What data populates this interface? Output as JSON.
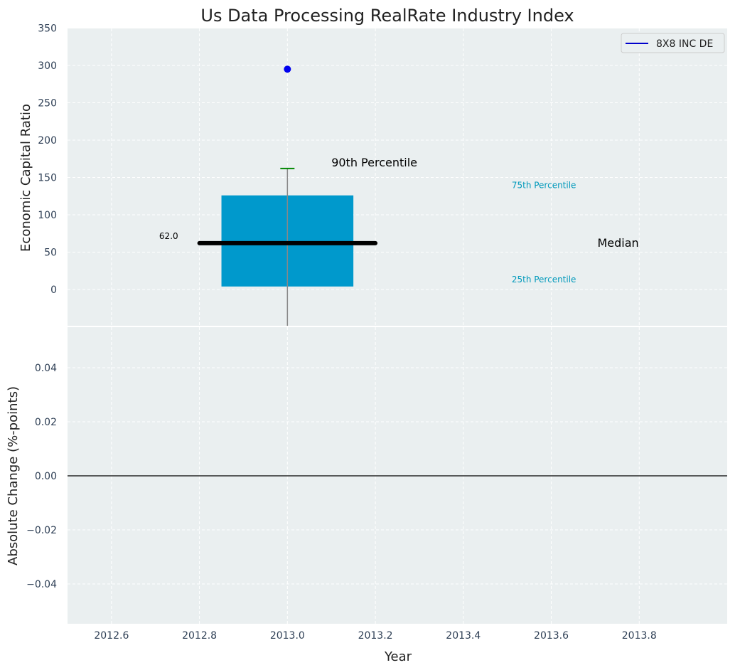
{
  "chart_data": [
    {
      "type": "box",
      "title": "Us Data Processing RealRate Industry Index",
      "xlabel": "",
      "ylabel": "Economic Capital Ratio",
      "ylim": [
        -50,
        350
      ],
      "xlim": [
        2012.5,
        2014.0
      ],
      "yticks": [
        "0",
        "50",
        "100",
        "150",
        "200",
        "250",
        "300",
        "350"
      ],
      "grid": true,
      "legend": {
        "position": "top-right",
        "entries": [
          {
            "label": "8X8 INC DE",
            "color": "#0000cc"
          }
        ]
      },
      "box": {
        "x": 2013.0,
        "p25": 4,
        "p75": 126,
        "median": 62,
        "p90": 162,
        "color": "#0099cc"
      },
      "median_label": "62.0",
      "point": {
        "name": "8X8 INC DE",
        "x": 2013.0,
        "y": 295,
        "color": "#0000ee"
      },
      "annotations": {
        "p90": "90th Percentile",
        "p75": "75th Percentile",
        "median": "Median",
        "p25": "25th Percentile"
      }
    },
    {
      "type": "line",
      "xlabel": "Year",
      "ylabel": "Absolute Change (%-points)",
      "ylim": [
        -0.055,
        0.055
      ],
      "xlim": [
        2012.5,
        2014.0
      ],
      "yticks": [
        "0.04",
        "0.02",
        "0.00",
        "−0.02",
        "−0.04"
      ],
      "xticks": [
        "2012.6",
        "2012.8",
        "2013.0",
        "2013.2",
        "2013.4",
        "2013.6",
        "2013.8"
      ],
      "reference_line": 0,
      "grid": true
    }
  ],
  "colors": {
    "axes_bg": "#eaeff0",
    "box": "#0099cc",
    "p90_cap": "#008800",
    "annotation_cyan": "#0099bb"
  }
}
